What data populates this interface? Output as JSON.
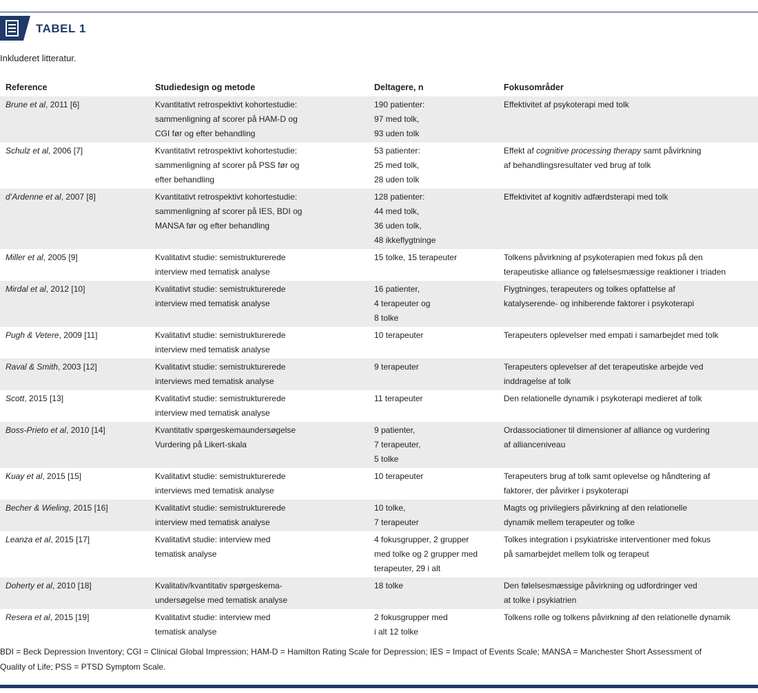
{
  "header": {
    "title": "TABEL 1",
    "caption": "Inkluderet litteratur."
  },
  "table": {
    "columns": [
      "Reference",
      "Studiedesign og metode",
      "Deltagere, n",
      "Fokusområder"
    ],
    "rows": [
      {
        "authors": "Brune et al",
        "cite": ", 2011 [6]",
        "design": [
          "Kvantitativt retrospektivt kohortestudie:",
          "sammenligning af scorer på HAM-D og",
          "CGI før og efter behandling"
        ],
        "participants": [
          "190 patienter:",
          "97 med tolk,",
          "93 uden tolk"
        ],
        "focus": [
          "Effektivitet af psykoterapi med tolk"
        ]
      },
      {
        "authors": "Schulz et al",
        "cite": ", 2006 [7]",
        "design": [
          "Kvantitativt retrospektivt kohortestudie:",
          "sammenligning af scorer på PSS før og",
          "efter behandling"
        ],
        "participants": [
          "53 patienter:",
          "25 med tolk,",
          "28 uden tolk"
        ],
        "focus": [
          [
            {
              "text": "Effekt af "
            },
            {
              "text": "cognitive processing therapy",
              "style": "italic"
            },
            {
              "text": " samt påvirkning"
            }
          ],
          "af behandlingsresultater ved brug af tolk"
        ]
      },
      {
        "authors": "d’Ardenne et al",
        "cite": ", 2007 [8]",
        "design": [
          "Kvantitativt retrospektivt kohortestudie:",
          "sammenligning af scorer på IES, BDI og",
          "MANSA før og efter behandling"
        ],
        "participants": [
          "128 patienter:",
          "44 med tolk,",
          "36 uden tolk,",
          "48 ikkeflygtninge"
        ],
        "focus": [
          "Effektivitet af kognitiv adfærdsterapi med tolk"
        ]
      },
      {
        "authors": "Miller et al",
        "cite": ", 2005 [9]",
        "design": [
          "Kvalitativt studie: semistrukturerede",
          "interview med tematisk analyse"
        ],
        "participants": [
          "15 tolke, 15 terapeuter"
        ],
        "focus": [
          "Tolkens påvirkning af psykoterapien med fokus på den",
          "terapeutiske alliance og følelsesmæssige reaktioner i triaden"
        ]
      },
      {
        "authors": "Mirdal et al",
        "cite": ", 2012 [10]",
        "design": [
          "Kvalitativt studie: semistrukturerede",
          "interview med tematisk analyse"
        ],
        "participants": [
          "16 patienter,",
          "4 terapeuter og",
          "8 tolke"
        ],
        "focus": [
          "Flygtninges, terapeuters og tolkes opfattelse af",
          "katalyserende- og inhiberende faktorer i psykoterapi"
        ]
      },
      {
        "authors": "Pugh & Vetere",
        "cite": ", 2009 [11]",
        "design": [
          "Kvalitativt studie: semistrukturerede",
          "interview med tematisk analyse"
        ],
        "participants": [
          "10 terapeuter"
        ],
        "focus": [
          "Terapeuters oplevelser med empati i samarbejdet med tolk"
        ]
      },
      {
        "authors": "Raval & Smith",
        "cite": ", 2003 [12]",
        "design": [
          "Kvalitativt studie: semistrukturerede",
          "interviews med tematisk analyse"
        ],
        "participants": [
          "9 terapeuter"
        ],
        "focus": [
          "Terapeuters oplevelser af det terapeutiske arbejde ved",
          "inddragelse af tolk"
        ]
      },
      {
        "authors": "Scott",
        "cite": ", 2015 [13]",
        "design": [
          "Kvalitativt studie: semistrukturerede",
          "interview med tematisk analyse"
        ],
        "participants": [
          "11 terapeuter"
        ],
        "focus": [
          "Den relationelle dynamik i psykoterapi medieret af tolk"
        ]
      },
      {
        "authors": "Boss-Prieto et al",
        "cite": ", 2010 [14]",
        "design": [
          "Kvantitativ spørgeskemaundersøgelse",
          "Vurdering på Likert-skala"
        ],
        "participants": [
          "9 patienter,",
          "7 terapeuter,",
          "5 tolke"
        ],
        "focus": [
          "Ordassociationer til dimensioner af alliance og vurdering",
          "af allianceniveau"
        ]
      },
      {
        "authors": "Kuay et al",
        "cite": ", 2015 [15]",
        "design": [
          "Kvalitativt studie: semistrukturerede",
          "interviews med tematisk analyse"
        ],
        "participants": [
          "10 terapeuter"
        ],
        "focus": [
          "Terapeuters brug af tolk samt oplevelse og håndtering af",
          "faktorer, der påvirker i psykoterapi"
        ]
      },
      {
        "authors": "Becher & Wieling",
        "cite": ", 2015 [16]",
        "design": [
          "Kvalitativt studie: semistrukturerede",
          "interview med tematisk analyse"
        ],
        "participants": [
          "10 tolke,",
          " 7 terapeuter"
        ],
        "focus": [
          "Magts og privilegiers påvirkning af den relationelle",
          "dynamik mellem terapeuter og tolke"
        ]
      },
      {
        "authors": "Leanza et al",
        "cite": ", 2015 [17]",
        "design": [
          "Kvalitativt studie: interview med",
          "tematisk analyse"
        ],
        "participants": [
          "4 fokusgrupper, 2 grupper",
          "med tolke og 2 grupper med",
          "terapeuter, 29 i alt"
        ],
        "focus": [
          "Tolkes integration i psykiatriske interventioner med fokus",
          "på samarbejdet mellem tolk og terapeut"
        ]
      },
      {
        "authors": "Doherty et al",
        "cite": ", 2010 [18]",
        "design": [
          "Kvalitativ/kvantitativ spørgeskema-",
          "undersøgelse med tematisk analyse"
        ],
        "participants": [
          "18 tolke"
        ],
        "focus": [
          "Den følelsesmæssige påvirkning og udfordringer ved",
          "at tolke i psykiatrien"
        ]
      },
      {
        "authors": "Resera et al",
        "cite": ", 2015 [19]",
        "design": [
          "Kvalitativt studie: interview med",
          "tematisk analyse"
        ],
        "participants": [
          "2 fokusgrupper med",
          "i alt 12 tolke"
        ],
        "focus": [
          "Tolkens rolle og tolkens påvirkning af den relationelle dynamik"
        ]
      }
    ]
  },
  "footnote": [
    "BDI = Beck Depression Inventory; CGI = Clinical Global Impression; HAM-D = Hamilton Rating Scale for Depression; IES = Impact of Events Scale; MANSA = Manchester Short Assessment of",
    "Quality of Life; PSS = PTSD Symptom Scale."
  ]
}
